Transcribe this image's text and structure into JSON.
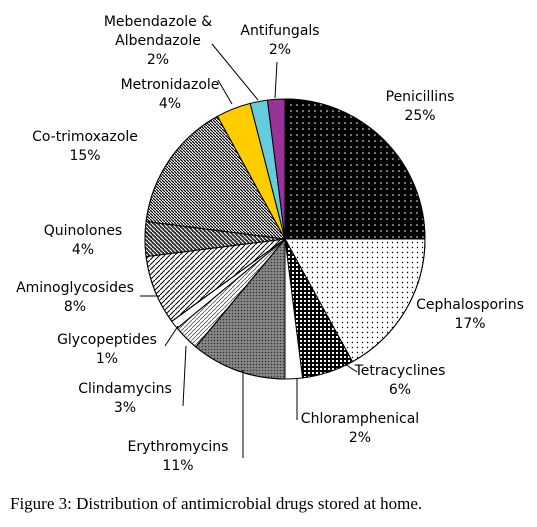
{
  "chart_data": {
    "type": "pie",
    "caption": "Figure 3: Distribution of antimicrobial drugs stored at home.",
    "categories": [
      "Penicillins",
      "Cephalosporins",
      "Tetracyclines",
      "Chloramphenical",
      "Erythromycins",
      "Clindamycins",
      "Glycopeptides",
      "Aminoglycosides",
      "Quinolones",
      "Co-trimoxazole",
      "Metronidazole",
      "Mebendazole & Albendazole",
      "Antifungals"
    ],
    "values": [
      25,
      17,
      6,
      2,
      11,
      3,
      1,
      8,
      4,
      15,
      4,
      2,
      2
    ],
    "value_labels": [
      "25%",
      "17%",
      "6%",
      "2%",
      "11%",
      "3%",
      "1%",
      "8%",
      "4%",
      "15%",
      "4%",
      "2%",
      "2%"
    ],
    "colors": [
      "#000000",
      "#ffffff",
      "#000000",
      "#ffffff",
      "#888888",
      "#ffffff",
      "#ffffff",
      "#ffffff",
      "#333333",
      "#ffffff",
      "#ffcc00",
      "#66ccdd",
      "#993399"
    ]
  }
}
